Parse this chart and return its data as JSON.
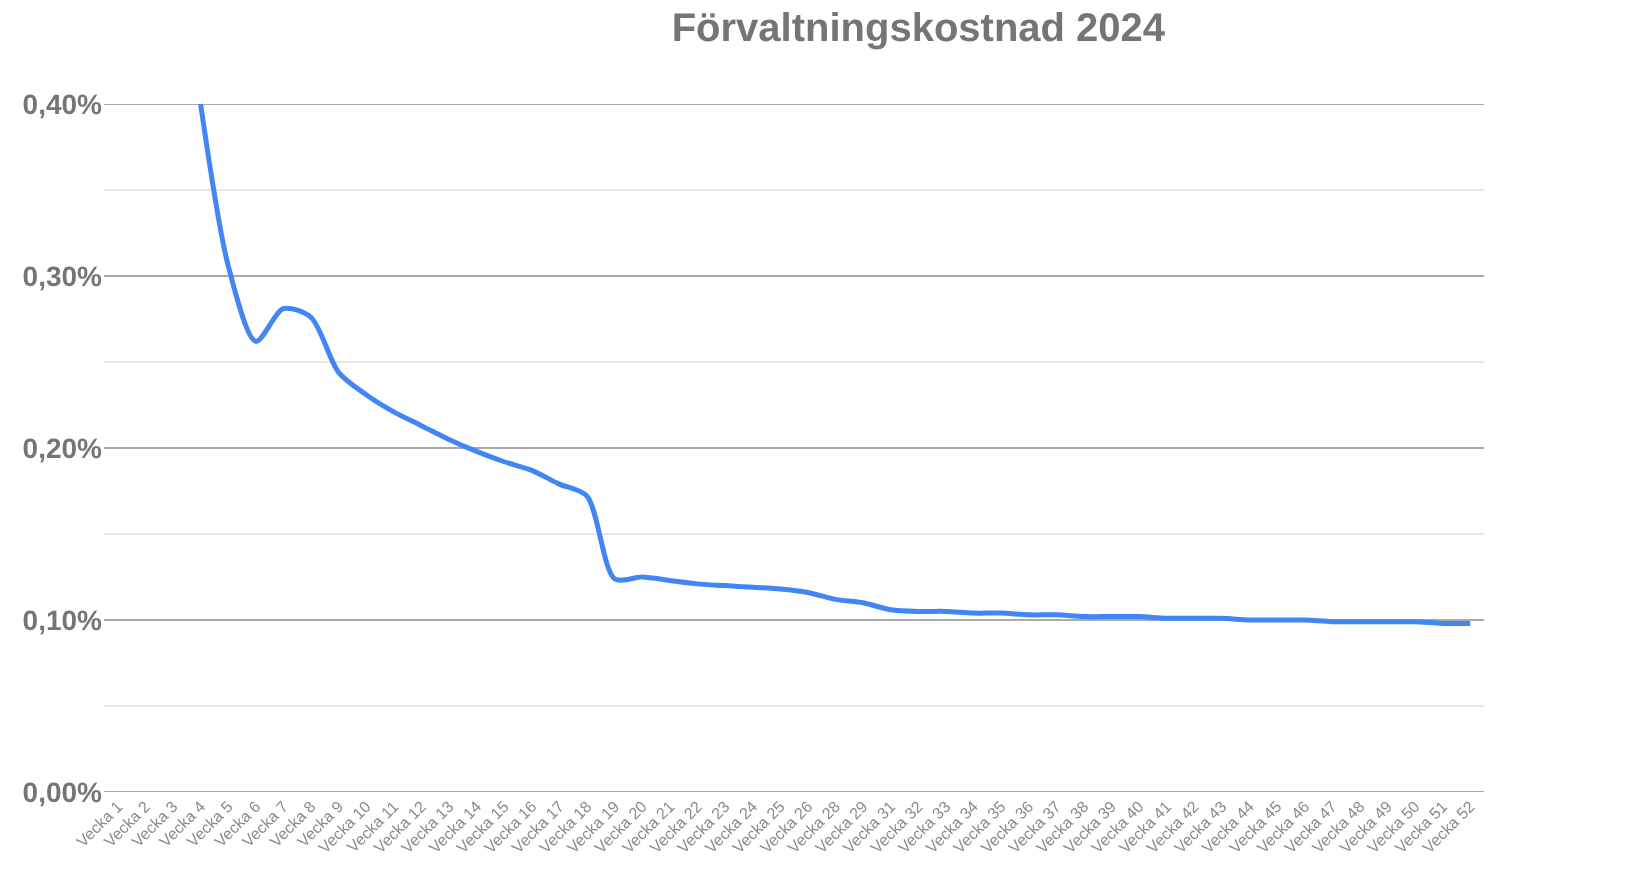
{
  "chart_data": {
    "type": "line",
    "title": "Förvaltningskostnad 2024",
    "categories": [
      "Vecka 1",
      "Vecka 2",
      "Vecka 3",
      "Vecka 4",
      "Vecka 5",
      "Vecka 6",
      "Vecka 7",
      "Vecka 8",
      "Vecka 9",
      "Vecka 10",
      "Vecka 11",
      "Vecka 12",
      "Vecka 13",
      "Vecka 14",
      "Vecka 15",
      "Vecka 16",
      "Vecka 17",
      "Vecka 18",
      "Vecka 19",
      "Vecka 20",
      "Vecka 21",
      "Vecka 22",
      "Vecka 23",
      "Vecka 24",
      "Vecka 25",
      "Vecka 26",
      "Vecka 28",
      "Vecka 29",
      "Vecka 31",
      "Vecka 32",
      "Vecka 33",
      "Vecka 34",
      "Vecka 35",
      "Vecka 36",
      "Vecka 37",
      "Vecka 38",
      "Vecka 39",
      "Vecka 40",
      "Vecka 41",
      "Vecka 42",
      "Vecka 43",
      "Vecka 44",
      "Vecka 45",
      "Vecka 46",
      "Vecka 47",
      "Vecka 48",
      "Vecka 49",
      "Vecka 50",
      "Vecka 51",
      "Vecka 52"
    ],
    "series": [
      {
        "color": "#4285f4",
        "values": [
          null,
          null,
          null,
          0.4,
          0.306,
          0.262,
          0.281,
          0.276,
          0.244,
          0.231,
          0.221,
          0.213,
          0.205,
          0.198,
          0.192,
          0.187,
          0.179,
          0.172,
          0.124,
          0.125,
          0.123,
          0.121,
          0.12,
          0.119,
          0.118,
          0.116,
          0.112,
          0.11,
          0.106,
          0.105,
          0.105,
          0.104,
          0.104,
          0.103,
          0.103,
          0.102,
          0.102,
          0.102,
          0.101,
          0.101,
          0.101,
          0.1,
          0.1,
          0.1,
          0.099,
          0.099,
          0.099,
          0.099,
          0.098,
          0.098
        ]
      }
    ],
    "ylim": [
      0,
      0.4
    ],
    "yticks": [
      {
        "value": 0,
        "label": "0,00%"
      },
      {
        "value": 0.05,
        "label": null
      },
      {
        "value": 0.1,
        "label": "0,10%"
      },
      {
        "value": 0.15,
        "label": null
      },
      {
        "value": 0.2,
        "label": "0,20%"
      },
      {
        "value": 0.25,
        "label": null
      },
      {
        "value": 0.3,
        "label": "0,30%"
      },
      {
        "value": 0.35,
        "label": null
      },
      {
        "value": 0.4,
        "label": "0,40%"
      }
    ],
    "grid": true,
    "marker": "none",
    "line_style": "solid"
  }
}
